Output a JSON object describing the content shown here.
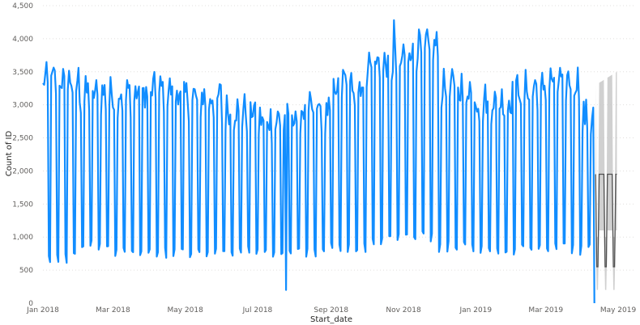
{
  "chart_data": {
    "type": "line",
    "title": "",
    "xlabel": "Start_date",
    "ylabel": "Count of ID",
    "x_tick_labels": [
      "Jan 2018",
      "Mar 2018",
      "May 2018",
      "Jul 2018",
      "Sep 2018",
      "Nov 2018",
      "Jan 2019",
      "Mar 2019",
      "May 2019"
    ],
    "y_ticks": [
      0,
      500,
      1000,
      1500,
      2000,
      2500,
      3000,
      3500,
      4000,
      4500
    ],
    "y_tick_labels": [
      "0",
      "500",
      "1,000",
      "1,500",
      "2,000",
      "2,500",
      "3,000",
      "3,500",
      "4,000",
      "4,500"
    ],
    "ylim": [
      0,
      4500
    ],
    "xlim": [
      "2018-01-01",
      "2019-05-01"
    ],
    "grid": "horizontal",
    "legend": "none",
    "weekly_pattern_note": "daily counts with weekday highs and weekend lows",
    "series": [
      {
        "kind": "actual",
        "color": "#118dff",
        "end_date": "2019-04-11",
        "monthly_weekday_level": {
          "2018-01": 3400,
          "2018-02": 3200,
          "2018-03": 3200,
          "2018-04": 3250,
          "2018-05": 3150,
          "2018-06": 2950,
          "2018-07": 2800,
          "2018-08": 2950,
          "2018-09": 3350,
          "2018-10": 3650,
          "2018-11": 3900,
          "2018-12": 3300,
          "2019-01": 3100,
          "2019-02": 3300,
          "2019-03": 3400,
          "2019-04": 2850
        },
        "monthly_weekend_level": {
          "2018-01": 680,
          "2018-02": 880,
          "2018-03": 780,
          "2018-04": 760,
          "2018-05": 740,
          "2018-06": 790,
          "2018-07": 770,
          "2018-08": 740,
          "2018-09": 830,
          "2018-10": 960,
          "2018-11": 1000,
          "2018-12": 860,
          "2019-01": 800,
          "2019-02": 810,
          "2019-03": 820,
          "2019-04": 900
        },
        "notable_points": [
          {
            "date": "2018-07-25",
            "value": 200
          },
          {
            "date": "2018-10-24",
            "value": 4280
          },
          {
            "date": "2019-04-11",
            "value": 0
          }
        ]
      },
      {
        "kind": "forecast",
        "color": "#505050",
        "band_color": "#c8c8c8",
        "start_date": "2019-04-12",
        "end_date": "2019-04-30",
        "weekday_level": 1950,
        "weekend_level": 550,
        "band_weekday_upper": 3300,
        "band_weekday_lower": 1100,
        "band_weekend_upper": 1000,
        "band_weekend_lower": 200
      }
    ]
  }
}
